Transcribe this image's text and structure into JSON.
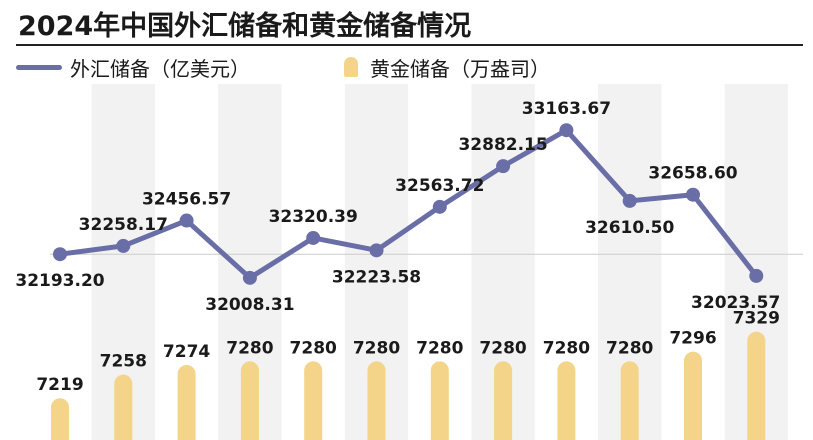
{
  "title": "2024年中国外汇储备和黄金储备情况",
  "legend": {
    "line_label": "外汇储备（亿美元）",
    "bar_label": "黄金储备（万盎司）"
  },
  "colors": {
    "line": "#6a6ea6",
    "bar": "#f3d489",
    "stripe": "#f2f2f2",
    "reference": "#cccccc",
    "text": "#1a1a1a"
  },
  "chart_data": {
    "type": "line+bar",
    "title": "2024年中国外汇储备和黄金储备情况",
    "categories": [
      "",
      "",
      "",
      "",
      "",
      "",
      "",
      "",
      "",
      "",
      "",
      ""
    ],
    "series": [
      {
        "name": "外汇储备（亿美元）",
        "type": "line",
        "values": [
          32193.2,
          32258.17,
          32456.57,
          32008.31,
          32320.39,
          32223.58,
          32563.72,
          32882.15,
          33163.67,
          32610.5,
          32658.6,
          32023.57
        ],
        "labels": [
          "32193.20",
          "32258.17",
          "32456.57",
          "32008.31",
          "32320.39",
          "32223.58",
          "32563.72",
          "32882.15",
          "33163.67",
          "32610.50",
          "32658.60",
          "32023.57"
        ],
        "ylim": [
          31600,
          33400
        ]
      },
      {
        "name": "黄金储备（万盎司）",
        "type": "bar",
        "values": [
          7219,
          7258,
          7274,
          7280,
          7280,
          7280,
          7280,
          7280,
          7280,
          7280,
          7296,
          7329
        ],
        "labels": [
          "7219",
          "7258",
          "7274",
          "7280",
          "7280",
          "7280",
          "7280",
          "7280",
          "7280",
          "7280",
          "7296",
          "7329"
        ],
        "ylim": [
          7150,
          7340
        ]
      }
    ],
    "grid": false,
    "legend_position": "top-left"
  }
}
